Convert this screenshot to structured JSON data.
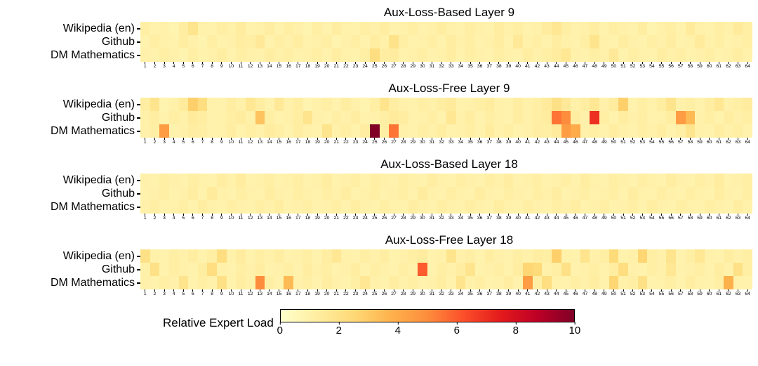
{
  "chart_data": {
    "type": "heatmap",
    "x_ticks": [
      1,
      2,
      3,
      4,
      5,
      6,
      7,
      8,
      9,
      10,
      11,
      12,
      13,
      14,
      15,
      16,
      17,
      18,
      19,
      20,
      21,
      22,
      23,
      24,
      25,
      26,
      27,
      28,
      29,
      30,
      31,
      32,
      33,
      34,
      35,
      36,
      37,
      38,
      39,
      40,
      41,
      42,
      43,
      44,
      45,
      46,
      47,
      48,
      49,
      50,
      51,
      52,
      53,
      54,
      55,
      56,
      57,
      58,
      59,
      60,
      61,
      62,
      63,
      64
    ],
    "figures": [
      {
        "title": "Aux-Loss-Based Layer 9",
        "rows": [
          "Wikipedia (en)",
          "Github",
          "DM Mathematics"
        ],
        "values": [
          [
            1.1,
            0.9,
            1.0,
            0.8,
            1.2,
            1.8,
            1.0,
            0.9,
            1.1,
            1.0,
            1.3,
            0.9,
            1.0,
            1.2,
            0.9,
            1.1,
            1.0,
            0.8,
            1.1,
            0.9,
            1.2,
            1.0,
            0.9,
            1.1,
            1.0,
            1.2,
            0.9,
            1.0,
            1.1,
            0.9,
            1.0,
            1.2,
            1.0,
            0.9,
            1.1,
            1.0,
            0.9,
            1.2,
            1.0,
            1.1,
            0.9,
            1.0,
            1.3,
            1.6,
            1.1,
            0.9,
            1.0,
            1.2,
            0.9,
            1.1,
            1.0,
            0.9,
            1.2,
            0.8,
            1.0,
            1.1,
            0.9,
            1.4,
            1.0,
            0.9,
            1.1,
            1.0,
            1.4,
            1.1
          ],
          [
            0.9,
            1.1,
            1.0,
            0.9,
            1.2,
            1.0,
            0.8,
            1.1,
            0.9,
            1.0,
            1.2,
            1.1,
            1.5,
            0.9,
            1.1,
            1.0,
            1.2,
            0.9,
            1.0,
            1.1,
            0.8,
            1.0,
            1.1,
            0.9,
            1.2,
            1.0,
            1.9,
            1.1,
            0.9,
            1.0,
            1.1,
            0.9,
            1.2,
            1.0,
            1.1,
            0.9,
            1.0,
            1.2,
            0.9,
            1.5,
            1.0,
            1.1,
            0.9,
            1.2,
            1.0,
            0.9,
            1.1,
            1.8,
            1.0,
            0.9,
            1.2,
            1.0,
            0.9,
            1.1,
            1.0,
            1.2,
            0.9,
            1.0,
            1.4,
            1.0,
            1.1,
            0.9,
            1.0,
            1.1
          ],
          [
            1.0,
            0.9,
            1.1,
            1.0,
            0.8,
            1.1,
            0.9,
            1.0,
            1.2,
            0.9,
            1.1,
            1.0,
            0.9,
            1.2,
            1.0,
            1.1,
            0.9,
            1.0,
            1.1,
            0.9,
            1.2,
            1.0,
            0.9,
            1.1,
            2.2,
            1.2,
            1.3,
            0.9,
            1.0,
            1.1,
            0.9,
            1.0,
            1.2,
            0.9,
            1.1,
            1.0,
            0.9,
            1.1,
            1.0,
            0.9,
            1.2,
            1.0,
            1.1,
            1.3,
            1.6,
            1.0,
            0.9,
            1.1,
            1.0,
            1.5,
            0.9,
            1.1,
            1.0,
            0.9,
            1.2,
            1.0,
            1.1,
            0.9,
            1.0,
            1.1,
            0.9,
            1.0,
            1.2,
            1.0
          ]
        ]
      },
      {
        "title": "Aux-Loss-Free Layer 9",
        "rows": [
          "Wikipedia (en)",
          "Github",
          "DM Mathematics"
        ],
        "values": [
          [
            1.2,
            1.8,
            0.8,
            1.0,
            1.4,
            2.8,
            2.2,
            1.0,
            0.9,
            1.2,
            1.0,
            1.6,
            1.2,
            0.9,
            1.5,
            1.0,
            1.2,
            0.8,
            1.0,
            1.1,
            0.9,
            1.2,
            1.0,
            0.8,
            1.1,
            1.8,
            1.2,
            1.0,
            0.9,
            1.1,
            1.0,
            1.2,
            1.4,
            0.9,
            1.0,
            1.1,
            1.3,
            1.0,
            0.9,
            1.2,
            1.0,
            1.1,
            1.4,
            2.0,
            1.5,
            1.0,
            1.2,
            1.6,
            1.0,
            1.3,
            2.8,
            0.9,
            1.1,
            1.0,
            1.2,
            1.8,
            1.0,
            1.1,
            0.9,
            1.2,
            1.6,
            1.0,
            1.1,
            1.3
          ],
          [
            1.0,
            1.2,
            0.9,
            1.1,
            1.0,
            1.4,
            1.2,
            0.9,
            1.0,
            1.1,
            1.3,
            1.0,
            3.2,
            1.1,
            0.9,
            1.0,
            1.2,
            1.8,
            1.0,
            0.9,
            1.1,
            1.0,
            1.2,
            0.9,
            1.0,
            1.1,
            1.4,
            1.2,
            0.9,
            1.0,
            1.1,
            0.9,
            1.6,
            1.0,
            1.2,
            0.9,
            1.1,
            1.0,
            0.9,
            1.2,
            1.0,
            1.1,
            1.3,
            5.5,
            5.0,
            1.2,
            1.0,
            7.0,
            1.1,
            0.9,
            1.2,
            1.0,
            1.1,
            0.9,
            1.0,
            1.2,
            4.5,
            3.5,
            1.0,
            1.1,
            0.9,
            1.2,
            1.0,
            1.1
          ],
          [
            1.0,
            1.1,
            4.5,
            0.9,
            1.0,
            1.2,
            1.1,
            0.9,
            1.0,
            1.2,
            0.9,
            1.1,
            1.0,
            1.3,
            1.1,
            0.9,
            1.2,
            1.0,
            0.9,
            1.8,
            1.0,
            1.1,
            0.9,
            1.2,
            10.0,
            1.1,
            5.5,
            1.0,
            0.9,
            1.1,
            1.0,
            1.2,
            0.9,
            1.0,
            1.1,
            0.9,
            1.3,
            1.0,
            1.1,
            0.9,
            1.0,
            1.2,
            1.1,
            1.4,
            4.5,
            4.0,
            1.0,
            1.1,
            0.9,
            1.2,
            1.0,
            0.9,
            1.1,
            1.0,
            1.2,
            0.9,
            1.1,
            1.8,
            1.0,
            0.9,
            1.2,
            1.0,
            1.1,
            0.9
          ]
        ]
      },
      {
        "title": "Aux-Loss-Based Layer 18",
        "rows": [
          "Wikipedia (en)",
          "Github",
          "DM Mathematics"
        ],
        "values": [
          [
            1.0,
            0.9,
            1.1,
            1.0,
            0.9,
            1.1,
            1.0,
            0.9,
            1.2,
            1.0,
            1.3,
            0.9,
            1.0,
            1.1,
            0.9,
            1.0,
            1.1,
            0.9,
            1.0,
            1.2,
            0.9,
            1.0,
            1.1,
            0.9,
            1.1,
            1.0,
            0.9,
            1.1,
            1.0,
            0.9,
            1.2,
            1.0,
            0.9,
            1.1,
            1.0,
            0.9,
            1.1,
            1.0,
            1.2,
            0.9,
            1.0,
            1.1,
            0.9,
            1.0,
            1.1,
            0.9,
            1.2,
            1.0,
            0.9,
            1.1,
            1.0,
            0.9,
            1.1,
            1.0,
            0.9,
            1.2,
            1.0,
            0.9,
            1.1,
            1.0,
            1.3,
            0.9,
            1.0,
            1.1
          ],
          [
            0.9,
            1.0,
            1.1,
            0.9,
            1.0,
            1.2,
            0.9,
            1.4,
            1.0,
            0.9,
            1.1,
            1.0,
            0.9,
            1.2,
            1.0,
            0.9,
            1.1,
            1.0,
            0.9,
            1.1,
            1.0,
            1.2,
            0.9,
            1.0,
            1.1,
            0.9,
            1.0,
            1.1,
            0.9,
            1.3,
            1.0,
            0.9,
            1.1,
            1.0,
            0.9,
            1.2,
            1.0,
            0.9,
            1.1,
            1.0,
            0.9,
            1.1,
            1.0,
            1.2,
            0.9,
            1.0,
            1.1,
            0.9,
            1.0,
            1.1,
            0.9,
            1.2,
            1.0,
            0.9,
            1.1,
            1.0,
            0.9,
            1.1,
            1.0,
            0.9,
            1.2,
            1.0,
            0.9,
            1.1
          ],
          [
            1.0,
            1.1,
            0.9,
            1.0,
            1.1,
            0.9,
            1.2,
            1.0,
            0.9,
            1.1,
            1.0,
            0.9,
            1.1,
            1.0,
            1.2,
            0.9,
            1.0,
            1.1,
            0.9,
            1.0,
            1.1,
            0.9,
            1.2,
            1.0,
            0.9,
            1.1,
            1.0,
            0.9,
            1.2,
            1.0,
            0.9,
            1.1,
            1.0,
            0.9,
            1.1,
            1.0,
            0.9,
            1.2,
            1.0,
            0.9,
            1.1,
            1.0,
            0.9,
            1.1,
            1.0,
            1.2,
            0.9,
            1.0,
            1.1,
            0.9,
            1.0,
            1.1,
            0.9,
            1.2,
            1.0,
            0.9,
            1.1,
            1.0,
            0.9,
            1.1,
            1.0,
            0.9,
            1.2,
            1.0
          ]
        ]
      },
      {
        "title": "Aux-Loss-Free Layer 18",
        "rows": [
          "Wikipedia (en)",
          "Github",
          "DM Mathematics"
        ],
        "values": [
          [
            2.0,
            1.0,
            0.9,
            1.1,
            1.0,
            1.2,
            0.9,
            1.1,
            2.2,
            1.0,
            1.3,
            0.9,
            1.1,
            1.0,
            1.2,
            0.9,
            1.0,
            1.1,
            0.9,
            1.2,
            1.6,
            1.0,
            0.9,
            1.1,
            1.0,
            1.2,
            0.9,
            1.0,
            1.1,
            1.3,
            0.9,
            1.0,
            1.8,
            1.0,
            1.1,
            0.9,
            1.2,
            1.0,
            0.9,
            1.1,
            1.0,
            1.2,
            1.1,
            2.8,
            1.0,
            0.9,
            1.8,
            1.0,
            1.1,
            2.4,
            0.9,
            1.0,
            2.6,
            1.1,
            1.0,
            1.8,
            0.9,
            1.1,
            1.6,
            1.0,
            0.9,
            1.2,
            1.0,
            1.1
          ],
          [
            1.0,
            2.0,
            0.9,
            1.1,
            1.0,
            0.9,
            1.2,
            2.2,
            1.0,
            0.9,
            1.1,
            1.0,
            1.2,
            0.9,
            1.0,
            1.1,
            0.9,
            1.2,
            1.0,
            1.1,
            0.9,
            1.0,
            1.2,
            0.9,
            1.1,
            1.0,
            0.9,
            1.1,
            1.0,
            6.0,
            0.9,
            1.1,
            1.0,
            1.2,
            1.8,
            0.9,
            1.0,
            1.1,
            0.9,
            1.2,
            2.6,
            2.4,
            1.0,
            1.1,
            2.0,
            0.9,
            1.0,
            1.1,
            0.9,
            1.2,
            2.2,
            1.0,
            0.9,
            1.1,
            1.0,
            1.6,
            0.9,
            1.0,
            1.1,
            0.9,
            1.2,
            1.0,
            2.0,
            1.1
          ],
          [
            1.0,
            0.9,
            1.1,
            1.0,
            1.8,
            0.9,
            1.1,
            1.0,
            2.0,
            0.9,
            1.2,
            1.0,
            5.0,
            1.1,
            0.9,
            3.5,
            1.0,
            1.1,
            0.9,
            1.2,
            1.0,
            0.9,
            1.1,
            1.6,
            1.0,
            0.9,
            1.2,
            1.0,
            1.1,
            0.9,
            1.0,
            1.2,
            0.9,
            1.8,
            1.0,
            1.1,
            0.9,
            1.0,
            1.2,
            0.9,
            4.5,
            1.1,
            2.2,
            1.0,
            0.9,
            1.1,
            1.0,
            1.2,
            0.9,
            2.6,
            1.0,
            1.1,
            2.0,
            0.9,
            1.0,
            1.1,
            0.9,
            1.2,
            1.0,
            0.9,
            1.1,
            3.8,
            1.0,
            0.9
          ]
        ]
      }
    ],
    "colorbar": {
      "label": "Relative Expert Load",
      "min": 0,
      "max": 10,
      "ticks": [
        0,
        2,
        4,
        6,
        8,
        10
      ],
      "stops": [
        "#ffffcc",
        "#ffeda0",
        "#fed976",
        "#feb24c",
        "#fd8d3c",
        "#fc4e2a",
        "#e31a1c",
        "#bd0026",
        "#800026"
      ]
    }
  }
}
